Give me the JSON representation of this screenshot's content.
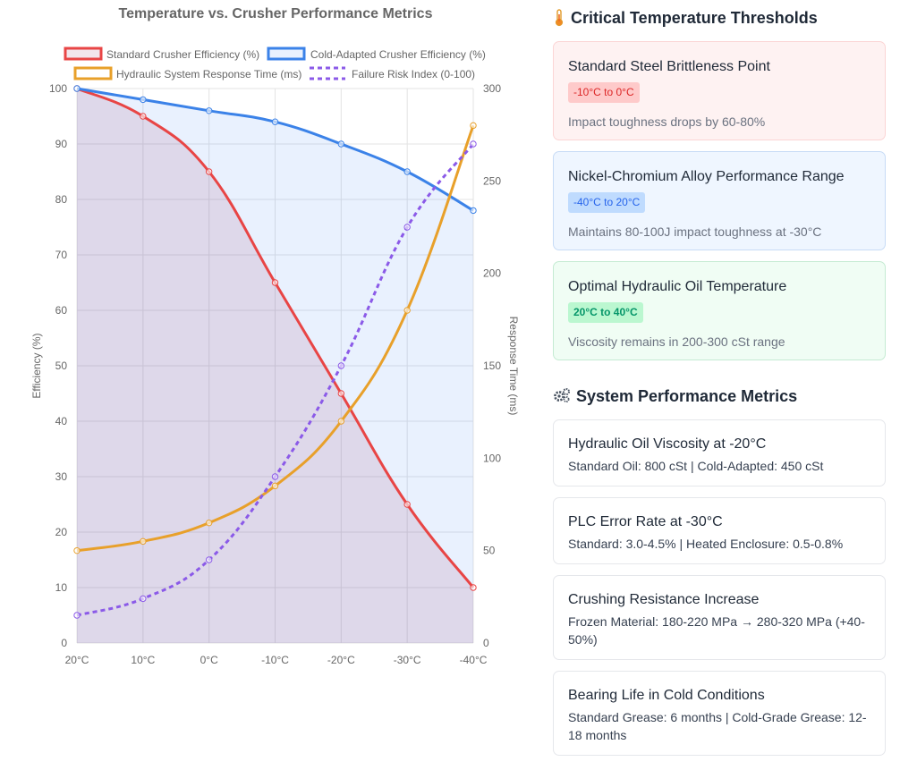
{
  "chart_data": {
    "type": "line",
    "title": "Temperature vs. Crusher Performance Metrics",
    "categories": [
      "20°C",
      "10°C",
      "0°C",
      "-10°C",
      "-20°C",
      "-30°C",
      "-40°C"
    ],
    "ylabel": "Efficiency (%)",
    "y2label": "Response Time (ms)",
    "ylim": [
      0,
      100
    ],
    "y2lim": [
      0,
      300
    ],
    "yticks": [
      "0",
      "10",
      "20",
      "30",
      "40",
      "50",
      "60",
      "70",
      "80",
      "90",
      "100"
    ],
    "y2ticks": [
      "0",
      "50",
      "100",
      "150",
      "200",
      "250",
      "300"
    ],
    "grid": true,
    "legend_position": "top",
    "series": [
      {
        "name": "Standard Crusher Efficiency (%)",
        "axis": "left",
        "values": [
          100,
          95,
          85,
          65,
          45,
          25,
          10
        ],
        "color": "#e84545",
        "fill": "rgba(150,40,90,0.12)",
        "dashed": false
      },
      {
        "name": "Cold-Adapted Crusher Efficiency (%)",
        "axis": "left",
        "values": [
          100,
          98,
          96,
          94,
          90,
          85,
          78
        ],
        "color": "#3b82e8",
        "fill": "rgba(59,130,246,0.11)",
        "dashed": false
      },
      {
        "name": "Hydraulic System Response Time (ms)",
        "axis": "right",
        "values": [
          50,
          55,
          65,
          85,
          120,
          180,
          280
        ],
        "color": "#e8a02a",
        "fill": null,
        "dashed": false
      },
      {
        "name": "Failure Risk Index (0-100)",
        "axis": "left",
        "values": [
          5,
          8,
          15,
          30,
          50,
          75,
          90
        ],
        "color": "#8b5ae8",
        "fill": null,
        "dashed": true
      }
    ]
  },
  "thresholds": {
    "title": "Critical Temperature Thresholds",
    "icon": "thermometer-icon",
    "items": [
      {
        "title": "Standard Steel Brittleness Point",
        "range": "-10°C to 0°C",
        "desc": "Impact toughness drops by 60-80%",
        "color": "#dc2626"
      },
      {
        "title": "Nickel-Chromium Alloy Performance Range",
        "range": "-40°C to 20°C",
        "desc": "Maintains 80-100J impact toughness at -30°C",
        "color": "#2563eb"
      },
      {
        "title": "Optimal Hydraulic Oil Temperature",
        "range": "20°C to 40°C",
        "desc": "Viscosity remains in 200-300 cSt range",
        "color": "#059669"
      }
    ]
  },
  "metrics": {
    "title": "System Performance Metrics",
    "icon": "gears-icon",
    "items": [
      {
        "title": "Hydraulic Oil Viscosity at -20°C",
        "value": "Standard Oil: 800 cSt | Cold-Adapted: 450 cSt"
      },
      {
        "title": "PLC Error Rate at -30°C",
        "value": "Standard: 3.0-4.5% | Heated Enclosure: 0.5-0.8%"
      },
      {
        "title": "Crushing Resistance Increase",
        "value": "Frozen Material: 180-220 MPa → 280-320 MPa (+40-50%)"
      },
      {
        "title": "Bearing Life in Cold Conditions",
        "value": "Standard Grease: 6 months | Cold-Grade Grease: 12-18 months"
      }
    ]
  }
}
